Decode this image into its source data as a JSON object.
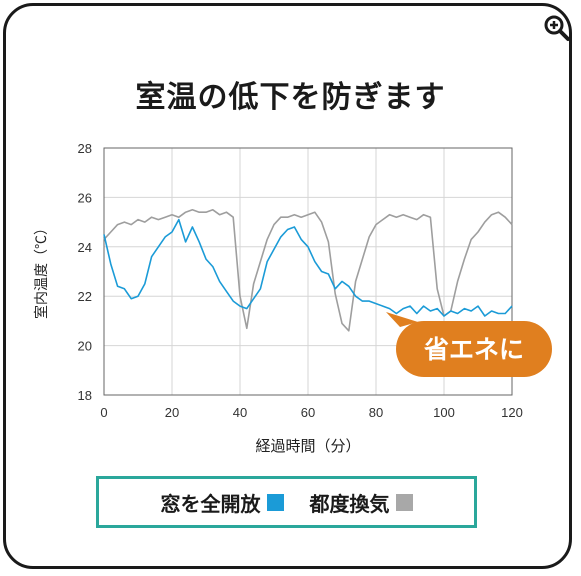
{
  "chart_data": {
    "type": "line",
    "title": "室温の低下を防ぎます",
    "xlabel": "経過時間（分）",
    "ylabel": "室内温度（℃）",
    "xlim": [
      0,
      120
    ],
    "ylim": [
      18,
      28
    ],
    "x_ticks": [
      "0",
      "20",
      "40",
      "60",
      "80",
      "100",
      "120"
    ],
    "y_ticks": [
      "18",
      "20",
      "22",
      "24",
      "26",
      "28"
    ],
    "grid": true,
    "legend_position": "bottom",
    "annotation": "省エネに",
    "series": [
      {
        "name": "窓を全開放",
        "color": "#1b9bd7",
        "x": [
          0,
          2,
          4,
          6,
          8,
          10,
          12,
          14,
          16,
          18,
          20,
          22,
          24,
          26,
          28,
          30,
          32,
          34,
          36,
          38,
          40,
          42,
          44,
          46,
          48,
          50,
          52,
          54,
          56,
          58,
          60,
          62,
          64,
          66,
          68,
          70,
          72,
          74,
          76,
          78,
          80,
          82,
          84,
          86,
          88,
          90,
          92,
          94,
          96,
          98,
          100,
          102,
          104,
          106,
          108,
          110,
          112,
          114,
          116,
          118,
          120
        ],
        "y": [
          24.5,
          23.3,
          22.4,
          22.3,
          21.9,
          22.0,
          22.5,
          23.6,
          24.0,
          24.4,
          24.6,
          25.1,
          24.2,
          24.8,
          24.2,
          23.5,
          23.2,
          22.6,
          22.2,
          21.8,
          21.6,
          21.5,
          21.9,
          22.3,
          23.4,
          23.9,
          24.4,
          24.7,
          24.8,
          24.3,
          24.0,
          23.4,
          23.0,
          22.9,
          22.3,
          22.6,
          22.4,
          22.0,
          21.8,
          21.8,
          21.7,
          21.6,
          21.5,
          21.3,
          21.5,
          21.6,
          21.3,
          21.6,
          21.4,
          21.5,
          21.2,
          21.4,
          21.3,
          21.5,
          21.4,
          21.6,
          21.2,
          21.4,
          21.3,
          21.3,
          21.6
        ]
      },
      {
        "name": "都度換気",
        "color": "#9e9e9e",
        "x": [
          0,
          2,
          4,
          6,
          8,
          10,
          12,
          14,
          16,
          18,
          20,
          22,
          24,
          26,
          28,
          30,
          32,
          34,
          36,
          38,
          40,
          42,
          44,
          46,
          48,
          50,
          52,
          54,
          56,
          58,
          60,
          62,
          64,
          66,
          68,
          70,
          72,
          74,
          76,
          78,
          80,
          82,
          84,
          86,
          88,
          90,
          92,
          94,
          96,
          98,
          100,
          102,
          104,
          106,
          108,
          110,
          112,
          114,
          116,
          118,
          120
        ],
        "y": [
          24.3,
          24.6,
          24.9,
          25.0,
          24.9,
          25.1,
          25.0,
          25.2,
          25.1,
          25.2,
          25.3,
          25.2,
          25.4,
          25.5,
          25.4,
          25.4,
          25.5,
          25.3,
          25.4,
          25.2,
          22.0,
          20.7,
          22.5,
          23.4,
          24.3,
          24.9,
          25.2,
          25.2,
          25.3,
          25.2,
          25.3,
          25.4,
          25.0,
          24.2,
          22.1,
          20.9,
          20.6,
          22.6,
          23.5,
          24.4,
          24.9,
          25.1,
          25.3,
          25.2,
          25.3,
          25.2,
          25.1,
          25.3,
          25.2,
          22.3,
          21.2,
          21.4,
          22.6,
          23.5,
          24.3,
          24.6,
          25.0,
          25.3,
          25.4,
          25.2,
          24.9
        ]
      }
    ]
  },
  "legend": [
    {
      "label": "窓を全開放",
      "color": "#1b9bd7"
    },
    {
      "label": "都度換気",
      "color": "#a8a8a8"
    }
  ],
  "annotation_color": "#e07f1f",
  "zoom_icon": "zoom-in-icon"
}
